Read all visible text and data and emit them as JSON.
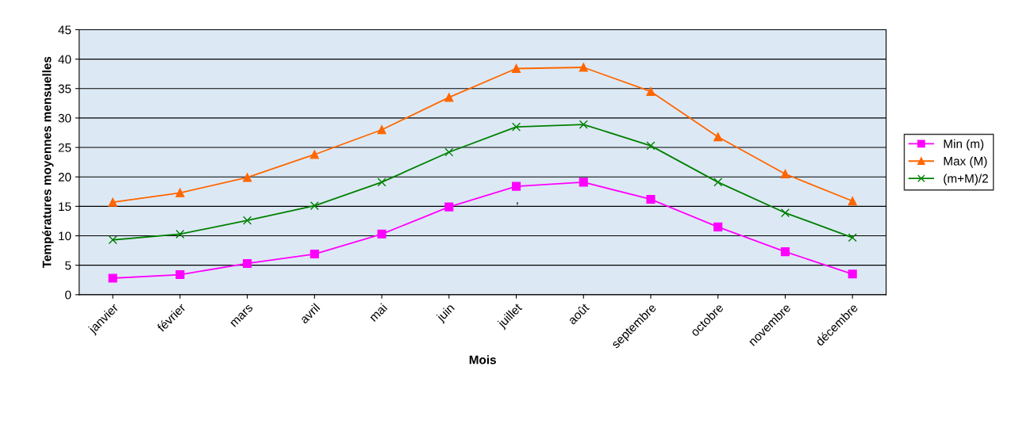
{
  "chart_data": {
    "type": "line",
    "xlabel": "Mois",
    "ylabel": "Températures moyennes mensuelles",
    "categories": [
      "janvier",
      "février",
      "mars",
      "avril",
      "mai",
      "juin",
      "juillet",
      "août",
      "septembre",
      "octobre",
      "novembre",
      "décembre"
    ],
    "series": [
      {
        "name": "Min (m)",
        "color": "#ff00ff",
        "marker": "square",
        "values": [
          2.8,
          3.4,
          5.3,
          6.9,
          10.3,
          14.9,
          18.4,
          19.1,
          16.2,
          11.5,
          7.3,
          3.5
        ]
      },
      {
        "name": "Max (M)",
        "color": "#ff6600",
        "marker": "triangle",
        "values": [
          15.7,
          17.3,
          19.9,
          23.8,
          28.0,
          33.5,
          38.4,
          38.6,
          34.5,
          26.8,
          20.5,
          15.9
        ]
      },
      {
        "name": "(m+M)/2",
        "color": "#008000",
        "marker": "cross",
        "values": [
          9.3,
          10.3,
          12.6,
          15.1,
          19.1,
          24.2,
          28.5,
          28.9,
          25.3,
          19.1,
          13.9,
          9.7
        ]
      }
    ],
    "ylim": [
      0,
      45
    ],
    "yticks": [
      0,
      5,
      10,
      15,
      20,
      25,
      30,
      35,
      40,
      45
    ],
    "grid": "y",
    "legend": "right",
    "annotations": [
      ","
    ]
  }
}
